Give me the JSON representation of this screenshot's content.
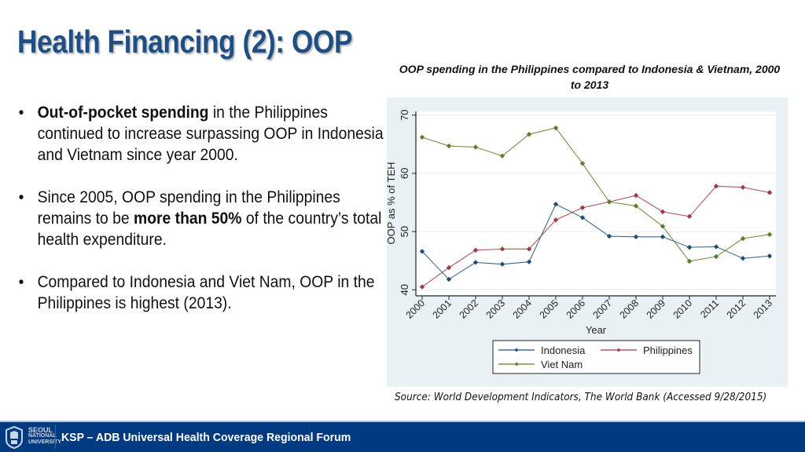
{
  "slide": {
    "title": "Health Financing (2): OOP",
    "bullets": [
      {
        "bold": "Out-of-pocket spending",
        "text_after": " in the Philippines continued to increase surpassing OOP in Indonesia and Vietnam since year 2000."
      },
      {
        "text_before": "Since 2005, OOP spending in the Philippines remains to be ",
        "bold": "more than 50%",
        "text_after": " of the country’s total health expenditure."
      },
      {
        "text_before": "Compared to Indonesia and Viet Nam, OOP in the Philippines is highest (2013)."
      }
    ],
    "bullet_glyph": "•"
  },
  "chart_data": {
    "type": "line",
    "title": "OOP spending in the Philippines compared to Indonesia & Vietnam, 2000 to 2013",
    "xlabel": "Year",
    "ylabel": "OOP as % of TEH",
    "ylim": [
      40,
      70
    ],
    "yticks": [
      40,
      50,
      60,
      70
    ],
    "grid": true,
    "legend_position": "bottom",
    "categories": [
      "2000",
      "2001",
      "2002",
      "2003",
      "2004",
      "2005",
      "2006",
      "2007",
      "2008",
      "2009",
      "2010",
      "2011",
      "2012",
      "2013"
    ],
    "series": [
      {
        "name": "Indonesia",
        "color": "#1f4e79",
        "values": [
          46.6,
          41.8,
          44.7,
          44.4,
          44.8,
          54.7,
          52.4,
          49.2,
          49.1,
          49.1,
          47.3,
          47.4,
          45.4,
          45.8
        ]
      },
      {
        "name": "Philippines",
        "color": "#9e3a45",
        "values": [
          40.5,
          43.8,
          46.8,
          47.0,
          47.0,
          52.0,
          54.1,
          55.1,
          56.2,
          53.4,
          52.6,
          57.8,
          57.6,
          56.7
        ]
      },
      {
        "name": "Viet Nam",
        "color": "#5a7d2a",
        "values": [
          66.2,
          64.7,
          64.5,
          63.0,
          66.7,
          67.8,
          61.7,
          55.1,
          54.4,
          50.9,
          44.9,
          45.7,
          48.8,
          49.5
        ]
      }
    ],
    "source": "Source: World Development Indicators, The World Bank (Accessed 9/28/2015)"
  },
  "footer": {
    "university_lines": [
      "SEOUL",
      "NATIONAL",
      "UNIVERSITY"
    ],
    "text": "KSP – ADB Universal Health Coverage Regional Forum"
  }
}
